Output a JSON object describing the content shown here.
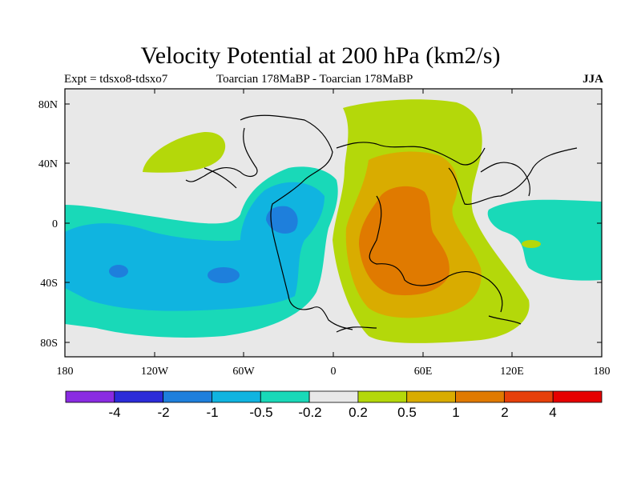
{
  "title": "Velocity Potential at 200 hPa (km2/s)",
  "subtitle_left": "Expt = tdsxo8-tdsxo7",
  "subtitle_center": "Toarcian 178MaBP - Toarcian 178MaBP",
  "subtitle_right": "JJA",
  "axes": {
    "x_ticks": [
      "180",
      "120W",
      "60W",
      "0",
      "60E",
      "120E",
      "180"
    ],
    "y_ticks": [
      "80N",
      "40N",
      "0",
      "40S",
      "80S"
    ],
    "x_range": [
      -180,
      180
    ],
    "y_range": [
      -90,
      90
    ]
  },
  "colorbar": {
    "colors": [
      "#8a2be2",
      "#2b2bd9",
      "#1e7fdc",
      "#10b4e0",
      "#19d9b8",
      "#e8e8e8",
      "#b4d80a",
      "#d9ac00",
      "#e07a00",
      "#e6400a",
      "#e60000"
    ],
    "labels": [
      "-4",
      "-2",
      "-1",
      "-0.5",
      "-0.2",
      "0.2",
      "0.5",
      "1",
      "2",
      "4"
    ]
  },
  "colors": {
    "background": "#e8e8e8",
    "negative_weak": "#19d9b8",
    "negative_mid": "#10b4e0",
    "negative_strong": "#1e7fdc",
    "positive_weak": "#b4d80a",
    "positive_mid": "#d9ac00",
    "positive_strong": "#e07a00"
  }
}
